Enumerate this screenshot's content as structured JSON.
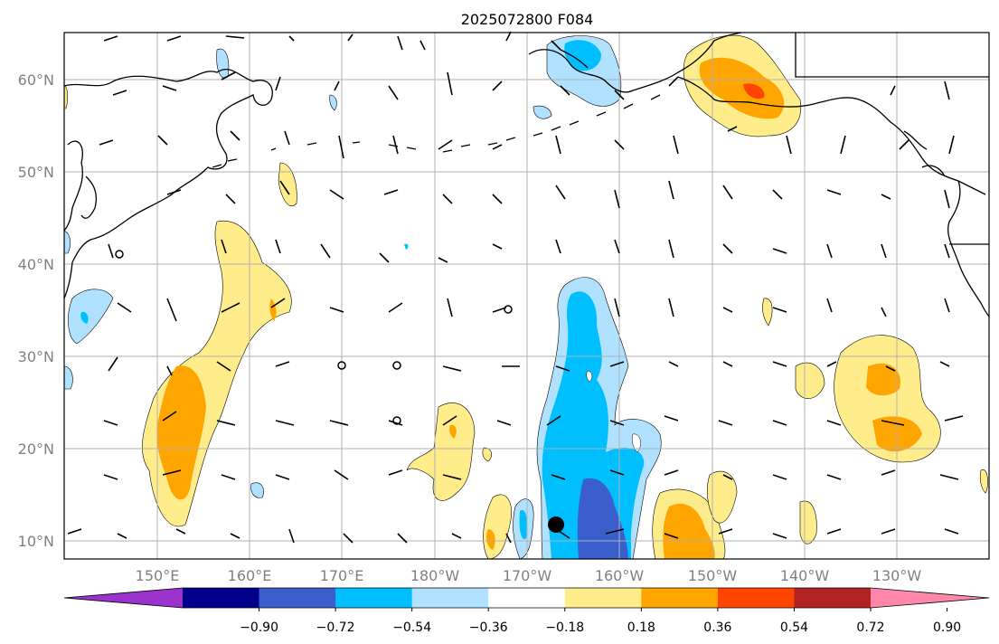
{
  "title": "2025072800 F084",
  "lat_labels": [
    "60°N",
    "50°N",
    "40°N",
    "30°N",
    "20°N",
    "10°N"
  ],
  "lon_labels": [
    "150°E",
    "160°E",
    "170°E",
    "180°W",
    "170°W",
    "160°W",
    "150°W",
    "140°W",
    "130°W"
  ],
  "colorbar": {
    "ticks": [
      "−0.90",
      "−0.72",
      "−0.54",
      "−0.36",
      "−0.18",
      "0.18",
      "0.36",
      "0.54",
      "0.72",
      "0.90"
    ],
    "colors": [
      "#9933cc",
      "#00008b",
      "#3a5fcd",
      "#00bfff",
      "#b0e2ff",
      "#ffffff",
      "#ffec8b",
      "#ffa500",
      "#ff4500",
      "#b22222",
      "#ff88aa"
    ]
  },
  "colors": {
    "land_line": "#000000",
    "grid": "#b0b0b0",
    "label_gray": "#808080"
  }
}
